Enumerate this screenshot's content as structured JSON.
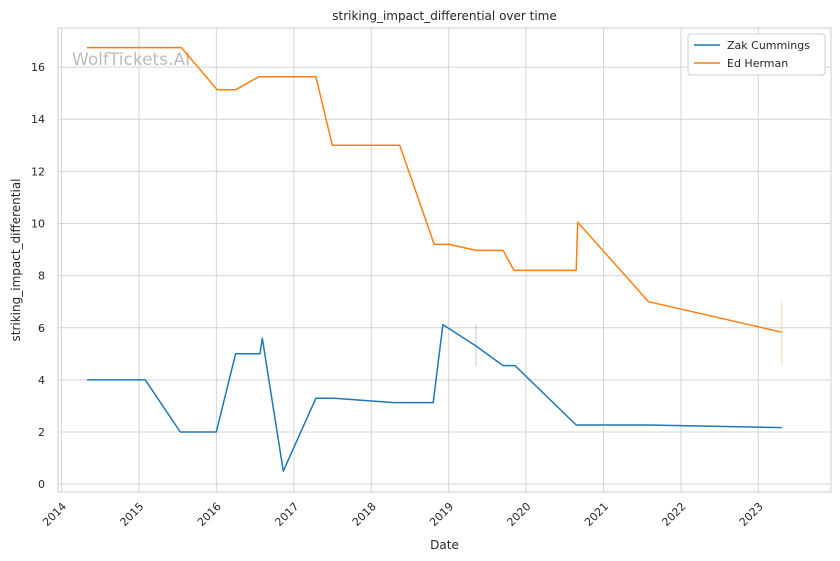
{
  "chart_data": {
    "type": "line",
    "title": "striking_impact_differential over time",
    "xlabel": "Date",
    "ylabel": "striking_impact_differential",
    "watermark": "WolfTickets.AI",
    "xlim": [
      "2013-12-15",
      "2023-12-10"
    ],
    "ylim": [
      -0.3,
      17.5
    ],
    "x_ticks": [
      "2014",
      "2015",
      "2016",
      "2017",
      "2018",
      "2019",
      "2020",
      "2021",
      "2022",
      "2023"
    ],
    "y_ticks": [
      0,
      2,
      4,
      6,
      8,
      10,
      12,
      14,
      16
    ],
    "grid": true,
    "legend_position": "top-right",
    "series": [
      {
        "name": "Zak Cummings",
        "color": "#1f77b4",
        "points": [
          [
            "2014-05-01",
            4.0
          ],
          [
            "2015-01-31",
            4.0
          ],
          [
            "2015-07-15",
            2.0
          ],
          [
            "2016-01-01",
            2.0
          ],
          [
            "2016-04-01",
            5.0
          ],
          [
            "2016-07-25",
            5.0
          ],
          [
            "2016-08-05",
            5.6
          ],
          [
            "2016-11-12",
            0.5
          ],
          [
            "2017-04-15",
            3.3
          ],
          [
            "2017-07-10",
            3.3
          ],
          [
            "2018-04-15",
            3.13
          ],
          [
            "2018-10-20",
            3.13
          ],
          [
            "2018-12-05",
            6.12
          ],
          [
            "2019-05-10",
            5.3
          ],
          [
            "2019-09-15",
            4.55
          ],
          [
            "2019-11-10",
            4.55
          ],
          [
            "2020-08-25",
            2.27
          ],
          [
            "2021-08-01",
            2.27
          ],
          [
            "2023-04-22",
            2.17
          ]
        ]
      },
      {
        "name": "Ed Herman",
        "color": "#ff7f0e",
        "points": [
          [
            "2014-05-01",
            16.75
          ],
          [
            "2015-07-20",
            16.75
          ],
          [
            "2016-01-05",
            15.13
          ],
          [
            "2016-04-01",
            15.13
          ],
          [
            "2016-07-20",
            15.63
          ],
          [
            "2017-04-15",
            15.63
          ],
          [
            "2017-07-01",
            13.0
          ],
          [
            "2018-05-15",
            13.0
          ],
          [
            "2018-10-25",
            9.2
          ],
          [
            "2019-01-05",
            9.2
          ],
          [
            "2019-05-10",
            8.97
          ],
          [
            "2019-09-15",
            8.97
          ],
          [
            "2019-11-05",
            8.2
          ],
          [
            "2020-08-25",
            8.2
          ],
          [
            "2020-09-01",
            10.05
          ],
          [
            "2021-08-01",
            7.0
          ],
          [
            "2023-04-22",
            5.83
          ]
        ]
      }
    ],
    "error_markers": [
      {
        "series": "Zak Cummings",
        "x": "2019-05-10",
        "low": 4.5,
        "high": 6.15
      },
      {
        "series": "Ed Herman",
        "x": "2023-04-22",
        "low": 4.6,
        "high": 7.0
      }
    ]
  }
}
